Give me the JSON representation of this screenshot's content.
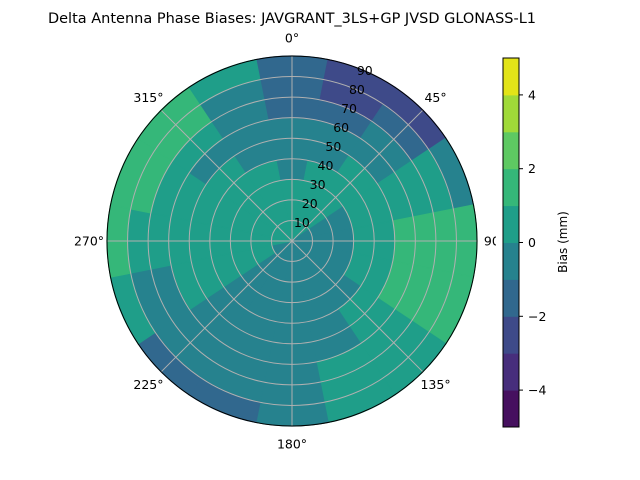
{
  "chart_data": {
    "type": "heatmap",
    "subtype": "polar-contour",
    "title": "Delta Antenna Phase Biases: JAVGRANT_3LS+GP JVSD GLONASS-L1",
    "theta_direction": "clockwise",
    "theta_zero": "north",
    "theta_tick_labels": [
      "0°",
      "45°",
      "90°",
      "135°",
      "180°",
      "225°",
      "270°",
      "315°"
    ],
    "theta_ticks": [
      0,
      45,
      90,
      135,
      180,
      225,
      270,
      315
    ],
    "r_ticks": [
      10,
      20,
      30,
      40,
      50,
      60,
      70,
      80,
      90
    ],
    "r_tick_labels": [
      "10",
      "20",
      "30",
      "40",
      "50",
      "60",
      "70",
      "80",
      "90"
    ],
    "rlim": [
      0,
      90
    ],
    "grid": true,
    "azimuth_centers": [
      0,
      22.5,
      45,
      67.5,
      90,
      112.5,
      135,
      157.5,
      180,
      202.5,
      225,
      247.5,
      270,
      292.5,
      315,
      337.5
    ],
    "zenith_centers": [
      5,
      15,
      25,
      35,
      45,
      55,
      65,
      75,
      85
    ],
    "values": [
      [
        0.5,
        0.5,
        0.5,
        -0.5,
        -0.5,
        -0.5,
        -1.5,
        -1.5,
        -1.5
      ],
      [
        0.5,
        0.5,
        0.5,
        0.5,
        -0.5,
        -0.5,
        -1.5,
        -2.5,
        -2.5
      ],
      [
        0.5,
        0.5,
        0.5,
        0.5,
        0.5,
        -0.5,
        -0.5,
        -1.5,
        -2.5
      ],
      [
        -0.5,
        -0.5,
        -0.5,
        0.5,
        0.5,
        0.5,
        0.5,
        0.5,
        -0.5
      ],
      [
        -0.5,
        -0.5,
        -0.5,
        0.5,
        0.5,
        1.5,
        1.5,
        1.5,
        1.5
      ],
      [
        -0.5,
        -0.5,
        -0.5,
        0.5,
        0.5,
        1.5,
        1.5,
        1.5,
        1.5
      ],
      [
        -0.5,
        -0.5,
        -0.5,
        -0.5,
        0.5,
        0.5,
        0.5,
        0.5,
        0.5
      ],
      [
        -0.5,
        -0.5,
        -0.5,
        -0.5,
        -0.5,
        -0.5,
        0.5,
        0.5,
        0.5
      ],
      [
        -0.5,
        -0.5,
        -0.5,
        -0.5,
        -0.5,
        -0.5,
        -0.5,
        -0.5,
        -0.5
      ],
      [
        -0.5,
        -0.5,
        -0.5,
        -0.5,
        -0.5,
        -0.5,
        -0.5,
        -0.5,
        -1.5
      ],
      [
        -0.5,
        -0.5,
        -0.5,
        -0.5,
        -0.5,
        -0.5,
        -0.5,
        -0.5,
        -1.5
      ],
      [
        -0.5,
        0.5,
        0.5,
        0.5,
        0.5,
        0.5,
        -0.5,
        -0.5,
        0.5
      ],
      [
        0.5,
        0.5,
        0.5,
        0.5,
        0.5,
        0.5,
        0.5,
        0.5,
        1.5
      ],
      [
        0.5,
        0.5,
        0.5,
        0.5,
        0.5,
        0.5,
        0.5,
        1.5,
        1.5
      ],
      [
        0.5,
        0.5,
        0.5,
        0.5,
        0.5,
        -0.5,
        0.5,
        1.5,
        1.5
      ],
      [
        0.5,
        0.5,
        0.5,
        0.5,
        -0.5,
        -0.5,
        -0.5,
        -0.5,
        0.5
      ]
    ],
    "colorbar": {
      "label": "Bias (mm)",
      "levels": [
        -5,
        -4,
        -3,
        -2,
        -1,
        0,
        1,
        2,
        3,
        4,
        5
      ],
      "ticks": [
        -4,
        -2,
        0,
        2,
        4
      ],
      "tick_labels": [
        "−4",
        "−2",
        "0",
        "2",
        "4"
      ],
      "colormap": "viridis",
      "colors": [
        "#46105f",
        "#472e7c",
        "#3e4a89",
        "#31688e",
        "#26828e",
        "#1f9e89",
        "#35b779",
        "#5ec962",
        "#a0da39",
        "#e3e418"
      ]
    }
  }
}
